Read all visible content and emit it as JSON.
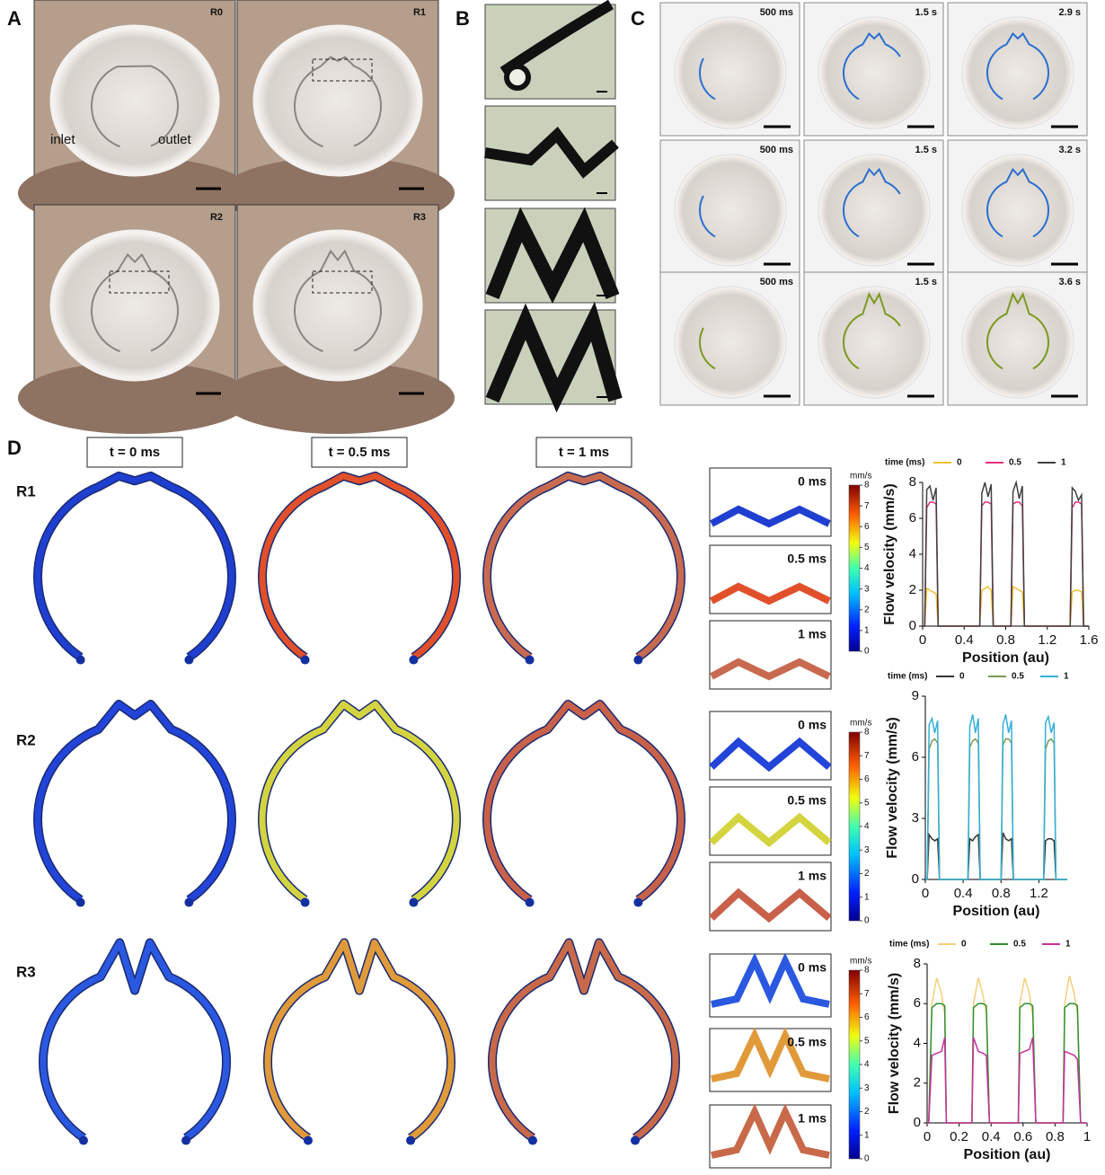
{
  "panels": {
    "A": {
      "label": "A",
      "images": [
        "R0",
        "R1",
        "R2",
        "R3"
      ],
      "inlet": "inlet",
      "outlet": "outlet"
    },
    "B": {
      "label": "B"
    },
    "C": {
      "label": "C",
      "times": [
        [
          "500 ms",
          "1.5 s",
          "2.9 s"
        ],
        [
          "500 ms",
          "1.5 s",
          "3.2 s"
        ],
        [
          "500 ms",
          "1.5 s",
          "3.6 s"
        ]
      ]
    },
    "D": {
      "label": "D",
      "headers": [
        "t = 0 ms",
        "t = 0.5 ms",
        "t = 1 ms"
      ],
      "rows": [
        "R1",
        "R2",
        "R3"
      ],
      "zoom_labels": [
        "0 ms",
        "0.5 ms",
        "1 ms"
      ],
      "colorbar_unit": "mm/s",
      "colorbar_ticks": [
        0,
        1,
        2,
        3,
        4,
        5,
        6,
        7,
        8
      ]
    }
  },
  "chart_data": [
    {
      "type": "line",
      "x_label": "Position (au)",
      "y_label": "Flow velocity (mm/s)",
      "legend_title": "time (ms)",
      "x": [
        0,
        0.02,
        0.04,
        0.07,
        0.1,
        0.13,
        0.15,
        0.55,
        0.57,
        0.6,
        0.63,
        0.66,
        0.68,
        0.85,
        0.87,
        0.9,
        0.93,
        0.96,
        0.98,
        1.42,
        1.44,
        1.47,
        1.5,
        1.53,
        1.55,
        1.6
      ],
      "series": [
        {
          "name": "0",
          "color": "#f0c030",
          "values": [
            0,
            0,
            2.1,
            2.0,
            1.9,
            1.8,
            0,
            0,
            2.0,
            2.1,
            2.2,
            2.0,
            0,
            0,
            2.2,
            2.1,
            2.0,
            1.9,
            0,
            0,
            1.9,
            2.0,
            2.0,
            1.9,
            0,
            0
          ]
        },
        {
          "name": "0.5",
          "color": "#e0307a",
          "values": [
            0,
            0,
            6.6,
            6.9,
            6.9,
            6.8,
            0,
            0,
            6.7,
            6.9,
            6.9,
            6.8,
            0,
            0,
            6.8,
            6.9,
            6.9,
            6.7,
            0,
            0,
            6.6,
            6.9,
            6.9,
            6.8,
            0,
            0
          ]
        },
        {
          "name": "1",
          "color": "#404040",
          "values": [
            0,
            0,
            7.6,
            7.8,
            7.0,
            7.7,
            0,
            0,
            7.4,
            8.0,
            7.2,
            7.9,
            0,
            0,
            7.5,
            8.0,
            7.1,
            7.8,
            0,
            0,
            7.7,
            7.5,
            7.0,
            7.3,
            0,
            0
          ]
        }
      ],
      "xlim": [
        0,
        1.6
      ],
      "xticks": [
        0,
        0.4,
        0.8,
        1.2,
        1.6
      ],
      "ylim": [
        0,
        8
      ],
      "yticks": [
        0,
        2,
        4,
        6,
        8
      ]
    },
    {
      "type": "line",
      "x_label": "Position (au)",
      "y_label": "Flow velocity (mm/s)",
      "legend_title": "time (ms)",
      "x": [
        0,
        0.02,
        0.04,
        0.07,
        0.1,
        0.13,
        0.15,
        0.45,
        0.47,
        0.5,
        0.53,
        0.56,
        0.58,
        0.8,
        0.82,
        0.85,
        0.88,
        0.91,
        0.93,
        1.25,
        1.27,
        1.3,
        1.33,
        1.36,
        1.38,
        1.5
      ],
      "series": [
        {
          "name": "0",
          "color": "#333333",
          "values": [
            0,
            0,
            2.2,
            2.0,
            1.9,
            2.0,
            0,
            0,
            2.0,
            1.9,
            2.1,
            2.2,
            0,
            0,
            2.3,
            2.0,
            1.9,
            2.0,
            0,
            0,
            1.9,
            2.0,
            2.0,
            1.9,
            0,
            0
          ]
        },
        {
          "name": "0.5",
          "color": "#7a9a50",
          "values": [
            0,
            0,
            6.4,
            6.8,
            6.9,
            6.7,
            0,
            0,
            6.5,
            6.8,
            6.9,
            6.7,
            0,
            0,
            6.6,
            6.9,
            6.9,
            6.7,
            0,
            0,
            6.4,
            6.8,
            6.9,
            6.7,
            0,
            0
          ]
        },
        {
          "name": "1",
          "color": "#35b0d8",
          "values": [
            0,
            0,
            7.6,
            7.9,
            7.2,
            7.8,
            0,
            0,
            7.5,
            8.1,
            7.2,
            7.9,
            0,
            0,
            7.6,
            8.1,
            7.2,
            7.8,
            0,
            0,
            7.7,
            8.0,
            7.2,
            7.7,
            0,
            0
          ]
        }
      ],
      "xlim": [
        0,
        1.5
      ],
      "xticks": [
        0,
        0.4,
        0.8,
        1.2
      ],
      "ylim": [
        0,
        9
      ],
      "yticks": [
        0,
        3,
        6,
        9
      ]
    },
    {
      "type": "line",
      "x_label": "Position (au)",
      "y_label": "Flow velocity (mm/s)",
      "legend_title": "time (ms)",
      "x": [
        0,
        0.01,
        0.03,
        0.06,
        0.09,
        0.11,
        0.12,
        0.28,
        0.29,
        0.32,
        0.35,
        0.37,
        0.39,
        0.57,
        0.58,
        0.61,
        0.64,
        0.66,
        0.68,
        0.85,
        0.86,
        0.89,
        0.92,
        0.94,
        0.96,
        1
      ],
      "series": [
        {
          "name": "0",
          "color": "#f5cf7a",
          "values": [
            0,
            0,
            6.0,
            7.3,
            6.5,
            5.5,
            0,
            0,
            6.0,
            7.3,
            6.4,
            5.5,
            0,
            0,
            6.0,
            7.3,
            6.5,
            5.4,
            0,
            0,
            6.0,
            7.4,
            6.5,
            5.5,
            0,
            0
          ]
        },
        {
          "name": "0.5",
          "color": "#2f8f2f",
          "values": [
            0,
            0,
            5.8,
            6.0,
            6.0,
            5.9,
            0,
            0,
            5.8,
            6.0,
            6.0,
            5.9,
            0,
            0,
            5.8,
            6.0,
            6.0,
            5.9,
            0,
            0,
            5.8,
            6.0,
            6.0,
            5.9,
            0,
            0
          ]
        },
        {
          "name": "1",
          "color": "#c8309e",
          "values": [
            0,
            0,
            3.4,
            3.5,
            3.6,
            4.3,
            0,
            0,
            4.3,
            3.6,
            3.5,
            3.4,
            0,
            0,
            3.5,
            3.6,
            3.7,
            4.3,
            0,
            0,
            3.6,
            3.5,
            3.4,
            3.2,
            0,
            0
          ]
        }
      ],
      "xlim": [
        0,
        1
      ],
      "xticks": [
        0,
        0.2,
        0.4,
        0.6,
        0.8,
        1
      ],
      "ylim": [
        0,
        8
      ],
      "yticks": [
        0,
        2,
        4,
        6,
        8
      ]
    }
  ]
}
